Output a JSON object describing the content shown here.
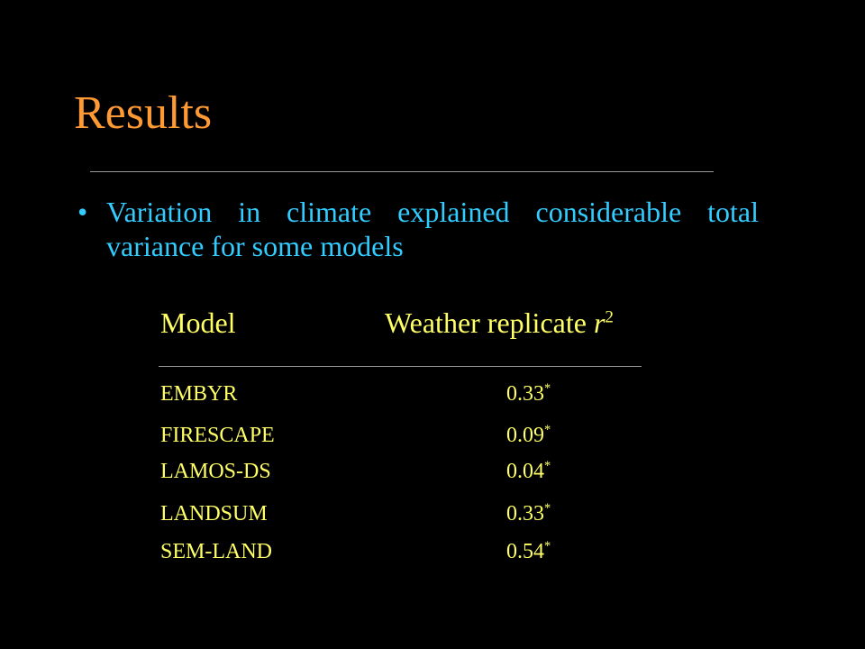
{
  "slide": {
    "title": "Results",
    "bullet": "Variation in climate explained considerable total variance for some models",
    "table": {
      "header": {
        "model": "Model",
        "value": "Weather replicate",
        "symbol": "r",
        "exponent": "2"
      },
      "rows": [
        [
          "EMBYR",
          "0.33",
          "*"
        ],
        [
          "FIRESCAPE",
          "0.09",
          "*"
        ],
        [
          "LAMOS-DS",
          "0.04",
          "*"
        ],
        [
          "LANDSUM",
          "0.33",
          "*"
        ],
        [
          "SEM-LAND",
          "0.54",
          "*"
        ]
      ]
    }
  }
}
